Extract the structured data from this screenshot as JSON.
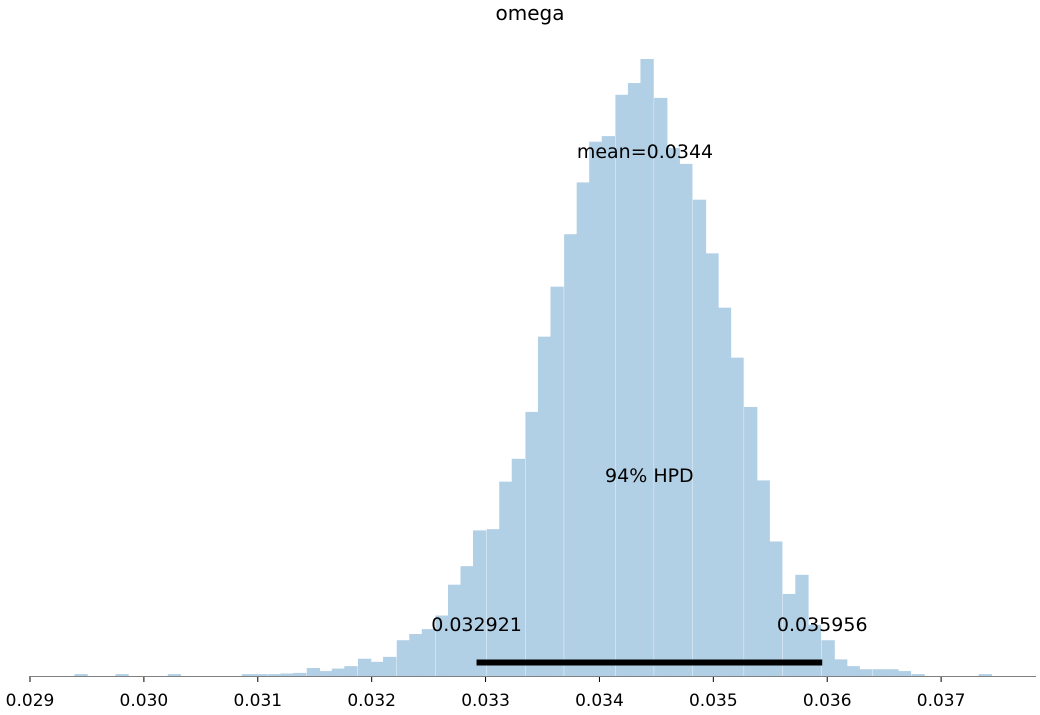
{
  "chart_data": {
    "type": "bar",
    "title": "omega",
    "xlabel": "",
    "ylabel": "",
    "xlim": [
      0.02899,
      0.03783
    ],
    "ylim": [
      0,
      1.0
    ],
    "grid": false,
    "histogram": {
      "bin_width": 0.000113,
      "bin_starts": [
        0.02939,
        0.02975,
        0.03021,
        0.03086,
        0.03097,
        0.03109,
        0.0312,
        0.03131,
        0.03143,
        0.03154,
        0.03165,
        0.03176,
        0.03188,
        0.03199,
        0.0321,
        0.03222,
        0.03233,
        0.03244,
        0.03256,
        0.03267,
        0.03278,
        0.03289,
        0.03301,
        0.03312,
        0.03323,
        0.03335,
        0.03346,
        0.03357,
        0.03369,
        0.0338,
        0.03391,
        0.03402,
        0.03414,
        0.03425,
        0.03436,
        0.03448,
        0.03459,
        0.0347,
        0.03482,
        0.03493,
        0.03504,
        0.03515,
        0.03527,
        0.03538,
        0.03549,
        0.03561,
        0.03572,
        0.03583,
        0.03595,
        0.03606,
        0.03617,
        0.03628,
        0.0364,
        0.03651,
        0.03662,
        0.03674,
        0.03733
      ],
      "heights": [
        0.003,
        0.003,
        0.003,
        0.003,
        0.003,
        0.003,
        0.004,
        0.005,
        0.013,
        0.008,
        0.012,
        0.016,
        0.028,
        0.023,
        0.031,
        0.058,
        0.068,
        0.076,
        0.098,
        0.148,
        0.178,
        0.236,
        0.238,
        0.315,
        0.352,
        0.428,
        0.55,
        0.631,
        0.716,
        0.8,
        0.866,
        0.875,
        0.942,
        0.961,
        1.0,
        0.937,
        0.856,
        0.83,
        0.772,
        0.685,
        0.597,
        0.516,
        0.436,
        0.317,
        0.218,
        0.133,
        0.164,
        0.083,
        0.058,
        0.027,
        0.016,
        0.011,
        0.011,
        0.011,
        0.008,
        0.003,
        0.003
      ]
    },
    "mean": {
      "value": 0.0344,
      "label": "mean=0.0344"
    },
    "hpd": {
      "label": "94% HPD",
      "low": 0.032921,
      "high": 0.035956,
      "low_label": "0.032921",
      "high_label": "0.035956"
    },
    "x_ticks": [
      {
        "value": 0.029,
        "label": "0.029"
      },
      {
        "value": 0.03,
        "label": "0.030"
      },
      {
        "value": 0.031,
        "label": "0.031"
      },
      {
        "value": 0.032,
        "label": "0.032"
      },
      {
        "value": 0.033,
        "label": "0.033"
      },
      {
        "value": 0.034,
        "label": "0.034"
      },
      {
        "value": 0.035,
        "label": "0.035"
      },
      {
        "value": 0.036,
        "label": "0.036"
      },
      {
        "value": 0.037,
        "label": "0.037"
      }
    ],
    "colors": {
      "bars": "#b1cfe5",
      "hpd_line": "#000000",
      "axis": "#808080"
    }
  }
}
